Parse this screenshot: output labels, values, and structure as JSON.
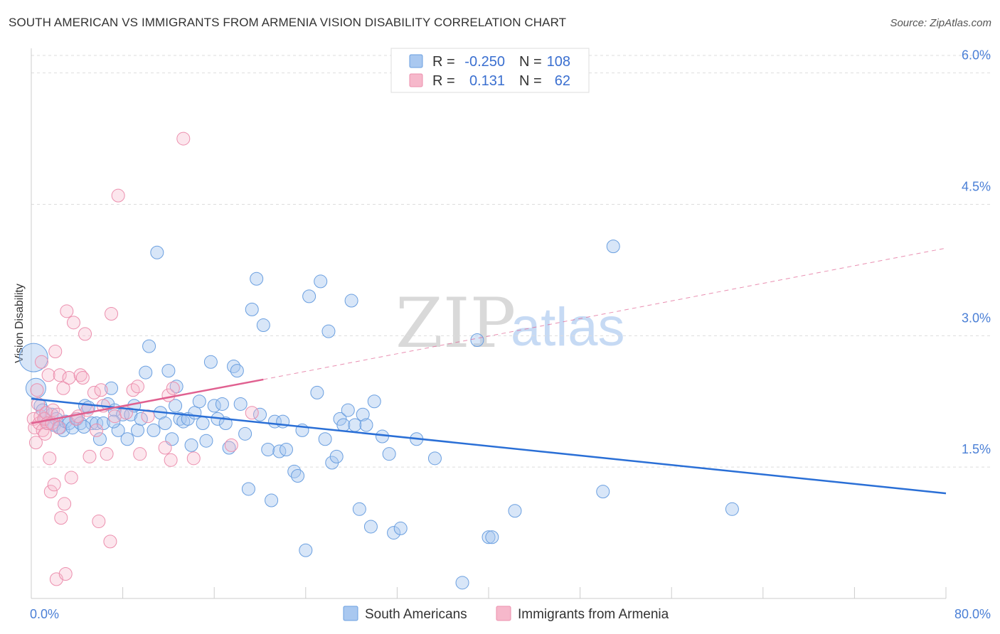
{
  "header": {
    "title": "SOUTH AMERICAN VS IMMIGRANTS FROM ARMENIA VISION DISABILITY CORRELATION CHART",
    "source": "Source: ZipAtlas.com"
  },
  "legend_top": {
    "rows": [
      {
        "r_label": "R =",
        "r_value": "-0.250",
        "n_label": "N =",
        "n_value": "108",
        "color": "#a9c8f0"
      },
      {
        "r_label": "R =",
        "r_value": "0.131",
        "n_label": "N =",
        "n_value": "62",
        "color": "#f6b8cb"
      }
    ]
  },
  "watermark": {
    "zip": "ZIP",
    "atlas": "atlas"
  },
  "colors": {
    "blue_fill": "#a9c8f0",
    "blue_stroke": "#6a9fe0",
    "blue_line": "#2a6fd6",
    "pink_fill": "#f6b8cb",
    "pink_stroke": "#ec8fae",
    "pink_line": "#e06090",
    "grid": "#dddddd",
    "axis_text": "#4a7fd6"
  },
  "chart_data": {
    "type": "scatter",
    "title": "SOUTH AMERICAN VS IMMIGRANTS FROM ARMENIA VISION DISABILITY CORRELATION CHART",
    "xlabel": "",
    "ylabel": "Vision Disability",
    "xlim": [
      0,
      80
    ],
    "ylim": [
      0,
      6.2
    ],
    "x_tick_labels": [
      "0.0%",
      "80.0%"
    ],
    "y_ticks": [
      1.5,
      3.0,
      4.5,
      6.0
    ],
    "y_tick_labels": [
      "1.5%",
      "3.0%",
      "4.5%",
      "6.0%"
    ],
    "grid": "horizontal dashed",
    "legend_position": "top-center",
    "series": [
      {
        "name": "South Americans",
        "r": -0.25,
        "n": 108,
        "trend": {
          "x": [
            0,
            80
          ],
          "y": [
            2.28,
            1.2
          ],
          "dashed_from": null
        },
        "points": [
          [
            0.2,
            2.75
          ],
          [
            0.4,
            2.4
          ],
          [
            0.8,
            2.2
          ],
          [
            1,
            2.15
          ],
          [
            1.2,
            2.05
          ],
          [
            1.5,
            2.0
          ],
          [
            1.8,
            2.1
          ],
          [
            2,
            1.98
          ],
          [
            2.2,
            2.05
          ],
          [
            2.5,
            1.95
          ],
          [
            2.8,
            1.92
          ],
          [
            3,
            2.02
          ],
          [
            3.3,
            2.0
          ],
          [
            3.6,
            1.95
          ],
          [
            4,
            2.05
          ],
          [
            4.3,
            2.0
          ],
          [
            4.7,
            2.2
          ],
          [
            5,
            2.18
          ],
          [
            5.3,
            2.0
          ],
          [
            5.7,
            2.0
          ],
          [
            6,
            1.82
          ],
          [
            6.3,
            2.0
          ],
          [
            6.7,
            2.22
          ],
          [
            7,
            2.4
          ],
          [
            7.3,
            2.15
          ],
          [
            7.6,
            1.92
          ],
          [
            8,
            2.1
          ],
          [
            8.4,
            1.82
          ],
          [
            8.7,
            2.1
          ],
          [
            9,
            2.2
          ],
          [
            9.3,
            1.92
          ],
          [
            9.6,
            2.05
          ],
          [
            10,
            2.58
          ],
          [
            10.3,
            2.88
          ],
          [
            10.7,
            1.92
          ],
          [
            11,
            3.95
          ],
          [
            11.3,
            2.12
          ],
          [
            11.7,
            2.0
          ],
          [
            12,
            2.6
          ],
          [
            12.3,
            1.82
          ],
          [
            12.7,
            2.42
          ],
          [
            13,
            2.05
          ],
          [
            13.3,
            2.02
          ],
          [
            13.7,
            2.05
          ],
          [
            14,
            1.75
          ],
          [
            14.3,
            2.12
          ],
          [
            14.7,
            2.25
          ],
          [
            15,
            2.0
          ],
          [
            15.3,
            1.8
          ],
          [
            15.7,
            2.7
          ],
          [
            16,
            2.2
          ],
          [
            16.3,
            2.05
          ],
          [
            16.7,
            2.22
          ],
          [
            17,
            2.0
          ],
          [
            17.3,
            1.72
          ],
          [
            17.7,
            2.65
          ],
          [
            18,
            2.6
          ],
          [
            18.3,
            2.22
          ],
          [
            18.7,
            1.88
          ],
          [
            19,
            1.25
          ],
          [
            19.3,
            3.3
          ],
          [
            19.7,
            3.65
          ],
          [
            20,
            2.1
          ],
          [
            20.3,
            3.12
          ],
          [
            20.7,
            1.7
          ],
          [
            21,
            1.12
          ],
          [
            21.3,
            2.02
          ],
          [
            21.7,
            1.68
          ],
          [
            22,
            2.02
          ],
          [
            22.3,
            1.7
          ],
          [
            23,
            1.45
          ],
          [
            23.3,
            1.4
          ],
          [
            23.7,
            1.92
          ],
          [
            24,
            0.55
          ],
          [
            24.3,
            3.45
          ],
          [
            25,
            2.35
          ],
          [
            25.3,
            3.62
          ],
          [
            25.7,
            1.82
          ],
          [
            26,
            3.05
          ],
          [
            26.3,
            1.55
          ],
          [
            26.7,
            1.62
          ],
          [
            27,
            2.05
          ],
          [
            27.3,
            1.98
          ],
          [
            27.7,
            2.15
          ],
          [
            28,
            3.4
          ],
          [
            28.3,
            1.98
          ],
          [
            28.7,
            1.02
          ],
          [
            29,
            2.1
          ],
          [
            29.3,
            1.98
          ],
          [
            29.7,
            0.82
          ],
          [
            30,
            2.25
          ],
          [
            30.7,
            1.85
          ],
          [
            31.3,
            1.65
          ],
          [
            31.7,
            0.75
          ],
          [
            32.3,
            0.8
          ],
          [
            33.7,
            1.82
          ],
          [
            35.3,
            1.6
          ],
          [
            37.7,
            0.18
          ],
          [
            39,
            2.95
          ],
          [
            40,
            0.7
          ],
          [
            40.3,
            0.7
          ],
          [
            42.3,
            1.0
          ],
          [
            50,
            1.22
          ],
          [
            50.9,
            4.02
          ],
          [
            61.3,
            1.02
          ],
          [
            12.6,
            2.2
          ],
          [
            7.2,
            2.02
          ],
          [
            4.6,
            1.96
          ]
        ]
      },
      {
        "name": "Immigrants from Armenia",
        "r": 0.131,
        "n": 62,
        "trend": {
          "x": [
            0,
            20.3
          ],
          "y": [
            2.0,
            2.5
          ],
          "dashed_to": {
            "x": 80,
            "y": 4.0
          }
        },
        "points": [
          [
            0.2,
            2.05
          ],
          [
            0.3,
            1.95
          ],
          [
            0.4,
            1.78
          ],
          [
            0.5,
            2.38
          ],
          [
            0.6,
            2.22
          ],
          [
            0.7,
            2.0
          ],
          [
            0.8,
            2.08
          ],
          [
            0.9,
            2.7
          ],
          [
            1,
            1.92
          ],
          [
            1.1,
            2.05
          ],
          [
            1.2,
            1.88
          ],
          [
            1.3,
            2.12
          ],
          [
            1.4,
            2.0
          ],
          [
            1.5,
            2.55
          ],
          [
            1.6,
            1.6
          ],
          [
            1.7,
            1.22
          ],
          [
            1.8,
            2.0
          ],
          [
            1.9,
            2.15
          ],
          [
            2,
            1.3
          ],
          [
            2.1,
            2.82
          ],
          [
            2.2,
            0.22
          ],
          [
            2.3,
            2.1
          ],
          [
            2.4,
            1.95
          ],
          [
            2.5,
            2.55
          ],
          [
            2.6,
            0.92
          ],
          [
            2.8,
            2.4
          ],
          [
            2.9,
            1.08
          ],
          [
            3,
            0.28
          ],
          [
            3.1,
            3.28
          ],
          [
            3.3,
            2.52
          ],
          [
            3.5,
            1.38
          ],
          [
            3.7,
            3.15
          ],
          [
            3.9,
            2.05
          ],
          [
            4.1,
            2.08
          ],
          [
            4.3,
            2.55
          ],
          [
            4.5,
            2.52
          ],
          [
            4.7,
            3.02
          ],
          [
            4.9,
            2.15
          ],
          [
            5.1,
            1.62
          ],
          [
            5.5,
            2.35
          ],
          [
            5.7,
            1.92
          ],
          [
            5.9,
            0.88
          ],
          [
            6.1,
            2.38
          ],
          [
            6.3,
            2.2
          ],
          [
            6.6,
            1.65
          ],
          [
            6.9,
            0.65
          ],
          [
            7,
            3.25
          ],
          [
            7.3,
            2.08
          ],
          [
            7.6,
            4.6
          ],
          [
            8.3,
            2.12
          ],
          [
            8.9,
            2.38
          ],
          [
            9.3,
            2.42
          ],
          [
            9.5,
            1.65
          ],
          [
            10.2,
            2.08
          ],
          [
            11.7,
            1.72
          ],
          [
            12,
            2.32
          ],
          [
            12.2,
            1.58
          ],
          [
            12.4,
            2.4
          ],
          [
            13.3,
            5.25
          ],
          [
            14.2,
            1.6
          ],
          [
            17.5,
            1.75
          ],
          [
            19.3,
            2.12
          ]
        ]
      }
    ]
  },
  "legend_bottom": {
    "items": [
      {
        "label": "South Americans",
        "color": "#a9c8f0"
      },
      {
        "label": "Immigrants from Armenia",
        "color": "#f6b8cb"
      }
    ]
  }
}
